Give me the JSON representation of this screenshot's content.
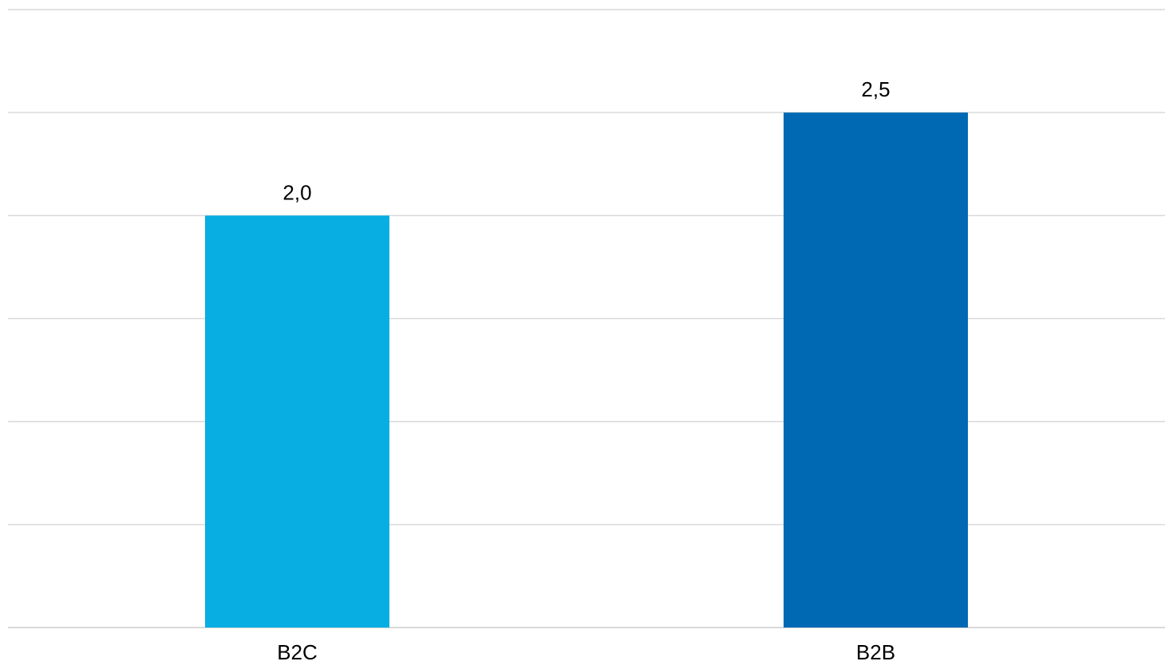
{
  "chart_data": {
    "type": "bar",
    "categories": [
      "B2C",
      "B2B"
    ],
    "values": [
      2.0,
      2.5
    ],
    "value_labels": [
      "2,0",
      "2,5"
    ],
    "colors": [
      "#08ADE2",
      "#0069B4"
    ],
    "ylim": [
      0,
      3.0
    ],
    "grid": true,
    "gridline_step": 0.5,
    "title": "",
    "xlabel": "",
    "ylabel": "",
    "legend": "none"
  }
}
